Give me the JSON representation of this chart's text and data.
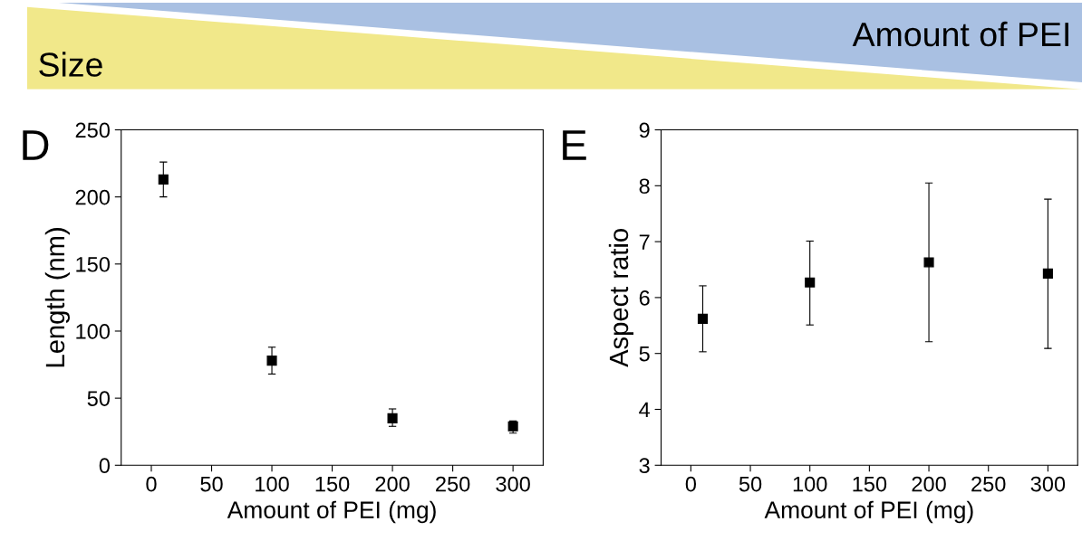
{
  "chart_data": [
    {
      "type": "other",
      "annotations": [
        "Amount of PEI",
        "Size"
      ],
      "colors": [
        "#f1e88a",
        "#a9c0e2"
      ]
    },
    {
      "type": "scatter",
      "title": "D",
      "xlabel": "Amount of PEI (mg)",
      "ylabel": "Length (nm)",
      "x": [
        10,
        100,
        200,
        300
      ],
      "series": [
        {
          "color": "#000000",
          "values": [
            213,
            78,
            35,
            29
          ],
          "errors": [
            [
              200,
              226
            ],
            [
              68,
              88
            ],
            [
              29,
              42
            ],
            [
              24,
              33
            ]
          ]
        }
      ],
      "xlim": [
        -25,
        325
      ],
      "xticks": [
        0,
        50,
        100,
        150,
        200,
        250,
        300
      ],
      "ylim": [
        0,
        250
      ],
      "yticks": [
        0,
        50,
        100,
        150,
        200,
        250
      ],
      "marker": "square",
      "grid": false,
      "legend": false
    },
    {
      "type": "scatter",
      "title": "E",
      "xlabel": "Amount of PEI (mg)",
      "ylabel": "Aspect ratio",
      "x": [
        10,
        100,
        200,
        300
      ],
      "series": [
        {
          "color": "#000000",
          "values": [
            5.62,
            6.27,
            6.63,
            6.43
          ],
          "errors": [
            [
              5.03,
              6.21
            ],
            [
              5.51,
              7.01
            ],
            [
              5.21,
              8.05
            ],
            [
              5.09,
              7.76
            ]
          ]
        }
      ],
      "xlim": [
        -25,
        325
      ],
      "xticks": [
        0,
        50,
        100,
        150,
        200,
        250,
        300
      ],
      "ylim": [
        3,
        9
      ],
      "yticks": [
        3,
        4,
        5,
        6,
        7,
        8,
        9
      ],
      "marker": "square",
      "grid": false,
      "legend": false
    }
  ]
}
